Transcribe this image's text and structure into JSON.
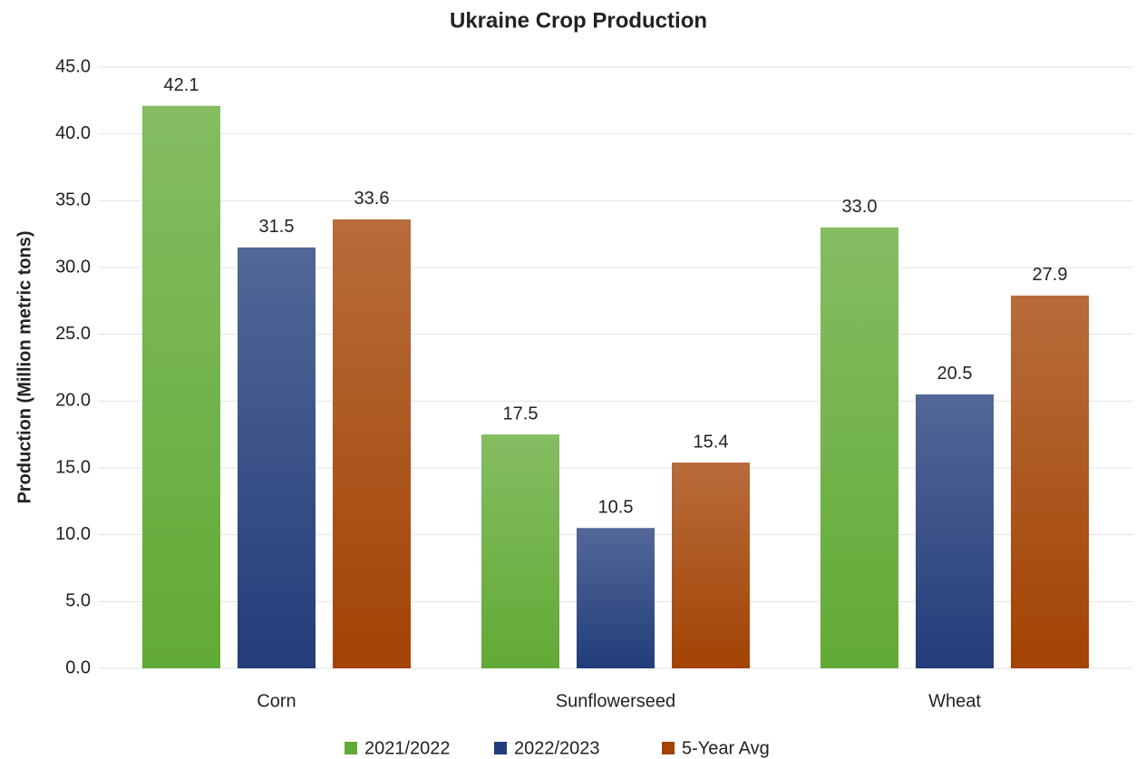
{
  "chart_data": {
    "type": "bar",
    "title": "Ukraine Crop Production",
    "y_label": "Production (Million metric tons)",
    "categories": [
      "Corn",
      "Sunflowerseed",
      "Wheat"
    ],
    "series": [
      {
        "name": "2021/2022",
        "color": "#62aa36",
        "values": [
          42.1,
          17.5,
          33.0
        ],
        "value_labels": [
          "42.1",
          "17.5",
          "33.0"
        ]
      },
      {
        "name": "2022/2023",
        "color": "#223d7a",
        "values": [
          31.5,
          10.5,
          20.5
        ],
        "value_labels": [
          "31.5",
          "10.5",
          "20.5"
        ]
      },
      {
        "name": "5-Year Avg",
        "color": "#a34304",
        "values": [
          33.6,
          15.4,
          27.9
        ],
        "value_labels": [
          "33.6",
          "15.4",
          "27.9"
        ]
      }
    ],
    "ylim": [
      0,
      45
    ],
    "yticks": [
      {
        "value": 0,
        "label": "0.0"
      },
      {
        "value": 5,
        "label": "5.0"
      },
      {
        "value": 10,
        "label": "10.0"
      },
      {
        "value": 15,
        "label": "15.0"
      },
      {
        "value": 20,
        "label": "20.0"
      },
      {
        "value": 25,
        "label": "25.0"
      },
      {
        "value": 30,
        "label": "30.0"
      },
      {
        "value": 35,
        "label": "35.0"
      },
      {
        "value": 40,
        "label": "40.0"
      },
      {
        "value": 45,
        "label": "45.0"
      }
    ],
    "grid": true,
    "legend": "bottom"
  }
}
